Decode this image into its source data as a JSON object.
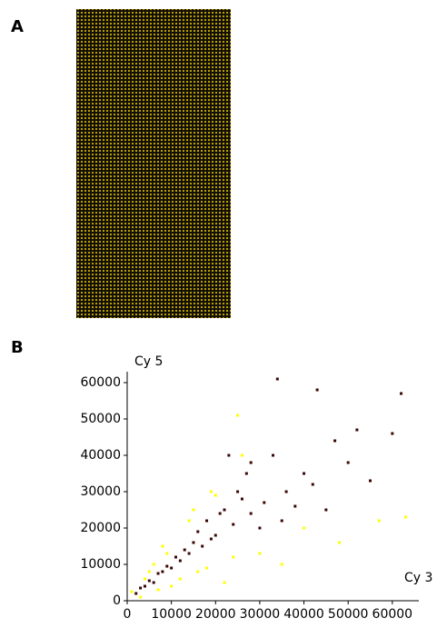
{
  "panel_a": {
    "label": "A"
  },
  "chart_data": {
    "type": "scatter",
    "panel_label": "B",
    "ylabel": "Cy 5",
    "xlabel": "Cy 3",
    "xlim": [
      0,
      66000
    ],
    "ylim": [
      0,
      63000
    ],
    "xticks": [
      0,
      10000,
      20000,
      30000,
      40000,
      50000,
      60000
    ],
    "yticks": [
      0,
      10000,
      20000,
      30000,
      40000,
      50000,
      60000
    ],
    "series": [
      {
        "color": "#ffff00",
        "x": [
          1000,
          3000,
          5000,
          7000,
          9000,
          12000,
          15000,
          18000,
          20000,
          22000,
          25000,
          30000,
          35000,
          40000,
          48000,
          57000,
          63000,
          8000,
          10000,
          14000,
          16000,
          19000,
          24000,
          26000,
          6000,
          4000
        ],
        "values": [
          2500,
          1000,
          8000,
          3000,
          13000,
          6000,
          25000,
          9000,
          29000,
          5000,
          51000,
          13000,
          10000,
          20000,
          16000,
          22000,
          23000,
          15000,
          4000,
          22000,
          8000,
          30000,
          12000,
          40000,
          10000,
          6000
        ]
      },
      {
        "color": "#3a0606",
        "x": [
          2000,
          3000,
          4000,
          5000,
          6000,
          7000,
          8000,
          9000,
          10000,
          11000,
          12000,
          13000,
          14000,
          15000,
          16000,
          17000,
          18000,
          20000,
          22000,
          24000,
          26000,
          28000,
          30000,
          33000,
          36000,
          40000,
          43000,
          47000,
          52000,
          55000,
          60000,
          62000,
          34000,
          38000,
          28000,
          25000,
          21000,
          19000,
          23000,
          27000,
          31000,
          45000,
          50000,
          35000,
          42000
        ],
        "values": [
          2000,
          3500,
          4000,
          5500,
          5000,
          7500,
          8000,
          9500,
          9000,
          12000,
          11000,
          14000,
          13000,
          16000,
          19000,
          15000,
          22000,
          18000,
          25000,
          21000,
          28000,
          24000,
          20000,
          40000,
          30000,
          35000,
          58000,
          44000,
          47000,
          33000,
          46000,
          57000,
          61000,
          26000,
          38000,
          30000,
          24000,
          17000,
          40000,
          35000,
          27000,
          25000,
          38000,
          22000,
          32000
        ]
      }
    ]
  }
}
